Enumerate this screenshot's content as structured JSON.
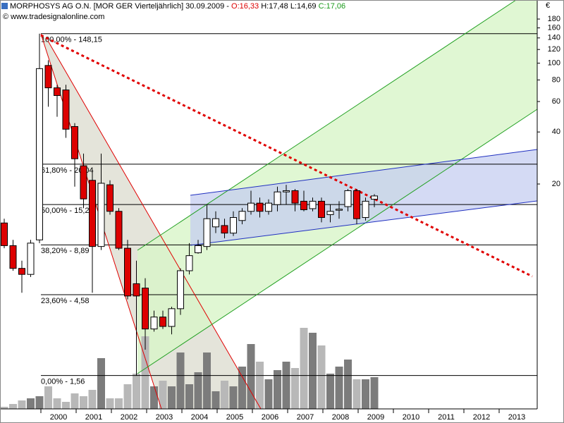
{
  "chart_data": {
    "type": "candlestick",
    "header": {
      "name": "MORPHOSYS AG O.N. [MOR GER  Vierteljährlich] 30.09.2009 -",
      "open_text": "O:16,33",
      "high_low_text": "H:17,48 L:14,69",
      "close_text": "C:17,06",
      "copyright": "© www.tradesignalonline.com"
    },
    "y_label": "€",
    "log_scale": true,
    "x": [
      1999,
      1999.25,
      1999.5,
      1999.75,
      2000,
      2000.25,
      2000.5,
      2000.75,
      2001,
      2001.25,
      2001.5,
      2001.75,
      2002,
      2002.25,
      2002.5,
      2002.75,
      2003,
      2003.25,
      2003.5,
      2003.75,
      2004,
      2004.25,
      2004.5,
      2004.75,
      2005,
      2005.25,
      2005.5,
      2005.75,
      2006,
      2006.25,
      2006.5,
      2006.75,
      2007,
      2007.25,
      2007.5,
      2007.75,
      2008,
      2008.25,
      2008.5,
      2008.75,
      2009,
      2009.25,
      2009.5
    ],
    "open": [
      11.9,
      8.8,
      6.5,
      6.0,
      9.5,
      97,
      72,
      70,
      43,
      25.5,
      21,
      8.7,
      19.8,
      13.9,
      8.5,
      5.3,
      5.0,
      2.9,
      3.4,
      3.0,
      3.8,
      6.3,
      8.0,
      8.7,
      11.3,
      11.5,
      10.4,
      12.3,
      13.9,
      15.5,
      13.9,
      15.2,
      18.0,
      18.3,
      15.9,
      14.4,
      15.9,
      13.3,
      14.1,
      14.8,
      18.3,
      12.8,
      16.33
    ],
    "high": [
      12.6,
      9.5,
      7.2,
      9.5,
      148.15,
      104,
      75,
      75,
      45,
      30,
      24.2,
      30,
      21,
      14.5,
      9.5,
      7.2,
      5.7,
      3.7,
      3.7,
      3.9,
      6.5,
      9.1,
      9.5,
      15.3,
      13.9,
      12.6,
      13.9,
      14.5,
      18.3,
      16.7,
      16.3,
      19.3,
      19.8,
      18.7,
      18.3,
      16.7,
      16.7,
      15.2,
      15.9,
      18.7,
      18.7,
      16.7,
      17.48
    ],
    "low": [
      8.5,
      6.3,
      4.7,
      5.8,
      9.1,
      56,
      49,
      37,
      19.3,
      14.5,
      4.7,
      8.3,
      13.3,
      8.3,
      4.3,
      1.56,
      2.2,
      2.8,
      2.9,
      2.7,
      3.5,
      6.0,
      7.9,
      8.3,
      10.4,
      9.7,
      10.0,
      11.7,
      13.3,
      12.8,
      13.3,
      13.9,
      15.2,
      13.9,
      13.9,
      13.9,
      12.0,
      12.0,
      12.6,
      13.9,
      11.7,
      12.3,
      14.69
    ],
    "close": [
      8.8,
      6.5,
      6.0,
      9.1,
      93,
      72,
      65,
      41.5,
      28,
      16.4,
      8.7,
      20.2,
      13.9,
      8.5,
      4.5,
      4.5,
      2.9,
      3.4,
      3.0,
      3.8,
      6.3,
      7.7,
      8.8,
      12.6,
      12.6,
      10.4,
      12.8,
      13.9,
      15.5,
      13.9,
      15.5,
      18.0,
      18.3,
      15.5,
      14.2,
      15.9,
      12.8,
      13.9,
      14.3,
      18.3,
      12.6,
      15.9,
      17.06
    ],
    "up_color": "#ffffff",
    "down_color": "#dd0000",
    "volume": [
      3,
      7,
      12,
      15,
      18,
      32,
      15,
      10,
      22,
      18,
      27,
      72,
      15,
      15,
      35,
      50,
      103,
      32,
      40,
      32,
      80,
      35,
      52,
      80,
      25,
      40,
      32,
      60,
      92,
      67,
      42,
      55,
      67,
      58,
      115,
      108,
      90,
      50,
      60,
      70,
      42,
      42,
      45
    ],
    "volume_lim": [
      0,
      150
    ],
    "volume_up_color": "#7c7c7c",
    "volume_down_color": "#b8b8b8",
    "fib_levels": [
      {
        "value": 148.15,
        "label": "100,00% - 148,15"
      },
      {
        "value": 26.04,
        "label": "61,80% - 26,04"
      },
      {
        "value": 15.22,
        "label": "50,00% - 15,22"
      },
      {
        "value": 8.89,
        "label": "38,20% - 8,89"
      },
      {
        "value": 4.58,
        "label": "23,60% - 4,58"
      },
      {
        "value": 1.56,
        "label": "0,00% - 1,56"
      }
    ],
    "xlim": [
      1998.84,
      2014.08
    ],
    "ylim": [
      1.0,
      232
    ],
    "xticks": [
      2000,
      2001,
      2002,
      2003,
      2004,
      2005,
      2006,
      2007,
      2008,
      2009,
      2010,
      2011,
      2012,
      2013
    ],
    "yticks": [
      20,
      40,
      60,
      80,
      100,
      120,
      140,
      160,
      180
    ]
  }
}
